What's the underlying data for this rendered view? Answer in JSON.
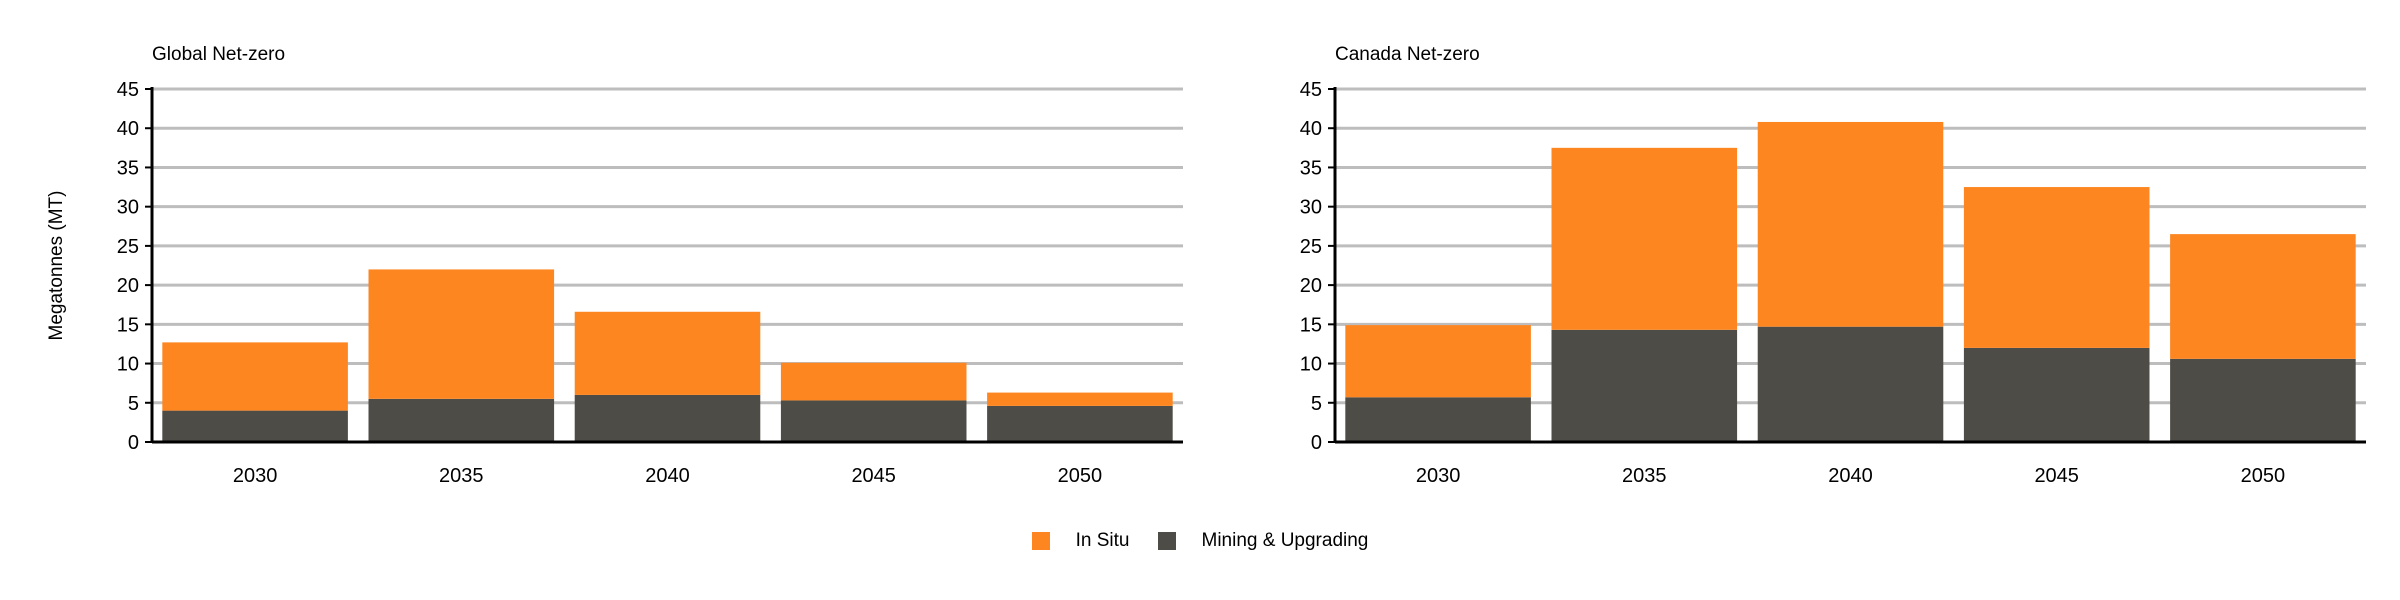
{
  "chart_data": [
    {
      "type": "bar",
      "stacked": true,
      "title": "Global Net-zero",
      "ylabel": "Megatonnes (MT)",
      "xlabel": "",
      "categories": [
        "2030",
        "2035",
        "2040",
        "2045",
        "2050"
      ],
      "series": [
        {
          "name": "Mining & Upgrading",
          "color": "#4d4c47",
          "values": [
            4,
            5.5,
            6,
            5.3,
            4.6
          ]
        },
        {
          "name": "In Situ",
          "color": "#fd8621",
          "values": [
            8.7,
            16.5,
            10.6,
            4.8,
            1.7
          ]
        }
      ],
      "ylim": [
        0,
        45
      ],
      "yticks": [
        "0",
        "5",
        "10",
        "15",
        "20",
        "25",
        "30",
        "35",
        "40",
        "45"
      ],
      "grid": true
    },
    {
      "type": "bar",
      "stacked": true,
      "title": "Canada Net-zero",
      "ylabel": "",
      "xlabel": "",
      "categories": [
        "2030",
        "2035",
        "2040",
        "2045",
        "2050"
      ],
      "series": [
        {
          "name": "Mining & Upgrading",
          "color": "#4d4c47",
          "values": [
            5.7,
            14.3,
            14.7,
            12,
            10.6
          ]
        },
        {
          "name": "In Situ",
          "color": "#fd8621",
          "values": [
            9.2,
            23.2,
            26.1,
            20.5,
            15.9
          ]
        }
      ],
      "ylim": [
        0,
        45
      ],
      "yticks": [
        "0",
        "5",
        "10",
        "15",
        "20",
        "25",
        "30",
        "35",
        "40",
        "45"
      ],
      "grid": true
    }
  ],
  "legend": {
    "position": "bottom-center",
    "items": [
      {
        "label": "In Situ",
        "color": "#fd8621"
      },
      {
        "label": "Mining & Upgrading",
        "color": "#4d4c47"
      }
    ]
  },
  "colors": {
    "grid": "#bdbdbd",
    "axis": "#000000"
  }
}
